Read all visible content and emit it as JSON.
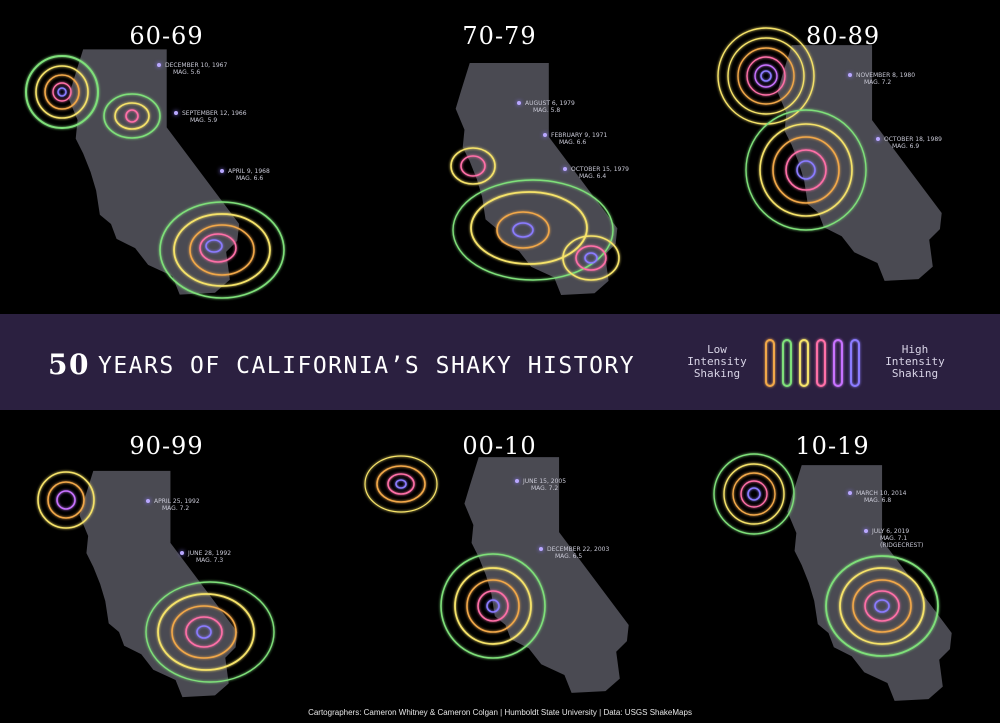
{
  "panels": [
    {
      "decade": "60-69",
      "quakes": [
        {
          "date": "December 10, 1967",
          "mag": "Mag. 5.6"
        },
        {
          "date": "September 12, 1966",
          "mag": "Mag. 5.9"
        },
        {
          "date": "April 9, 1968",
          "mag": "Mag. 6.6"
        }
      ]
    },
    {
      "decade": "70-79",
      "quakes": [
        {
          "date": "August 6, 1979",
          "mag": "Mag. 5.8"
        },
        {
          "date": "February 9, 1971",
          "mag": "Mag. 6.6"
        },
        {
          "date": "October 15, 1979",
          "mag": "Mag. 6.4"
        }
      ]
    },
    {
      "decade": "80-89",
      "quakes": [
        {
          "date": "November 8, 1980",
          "mag": "Mag. 7.2"
        },
        {
          "date": "October 18, 1989",
          "mag": "Mag. 6.9"
        }
      ]
    },
    {
      "decade": "90-99",
      "quakes": [
        {
          "date": "April 25, 1992",
          "mag": "Mag. 7.2"
        },
        {
          "date": "June 28, 1992",
          "mag": "Mag. 7.3"
        }
      ]
    },
    {
      "decade": "00-10",
      "quakes": [
        {
          "date": "June 15, 2005",
          "mag": "Mag. 7.2"
        },
        {
          "date": "December 22, 2003",
          "mag": "Mag. 6.5"
        }
      ]
    },
    {
      "decade": "10-19",
      "quakes": [
        {
          "date": "March 10, 2014",
          "mag": "Mag. 6.8"
        },
        {
          "date": "July 6, 2019",
          "mag": "Mag. 7.1",
          "note": "(Ridgecrest)"
        }
      ]
    }
  ],
  "title": {
    "number": "50",
    "text": "YEARS OF CALIFORNIA’S SHAKY HISTORY"
  },
  "legend": {
    "low_line1": "Low",
    "low_line2": "Intensity",
    "low_line3": "Shaking",
    "high_line1": "High",
    "high_line2": "Intensity",
    "high_line3": "Shaking",
    "colors": [
      "#f2a84a",
      "#7fe07a",
      "#f6e36a",
      "#ff6fa8",
      "#c872ff",
      "#8b7bff"
    ]
  },
  "footer": "Cartographers: Cameron Whitney & Cameron Colgan  |  Humboldt State University  |  Data: USGS ShakeMaps",
  "colors": {
    "background": "#000000",
    "band": "#2b2040",
    "land": "#4a4a52",
    "ring_green": "#7fe07a",
    "ring_yellow": "#f6e36a",
    "ring_orange": "#f2a84a",
    "ring_pink": "#ff6fa8",
    "ring_purple": "#8b7bff"
  }
}
